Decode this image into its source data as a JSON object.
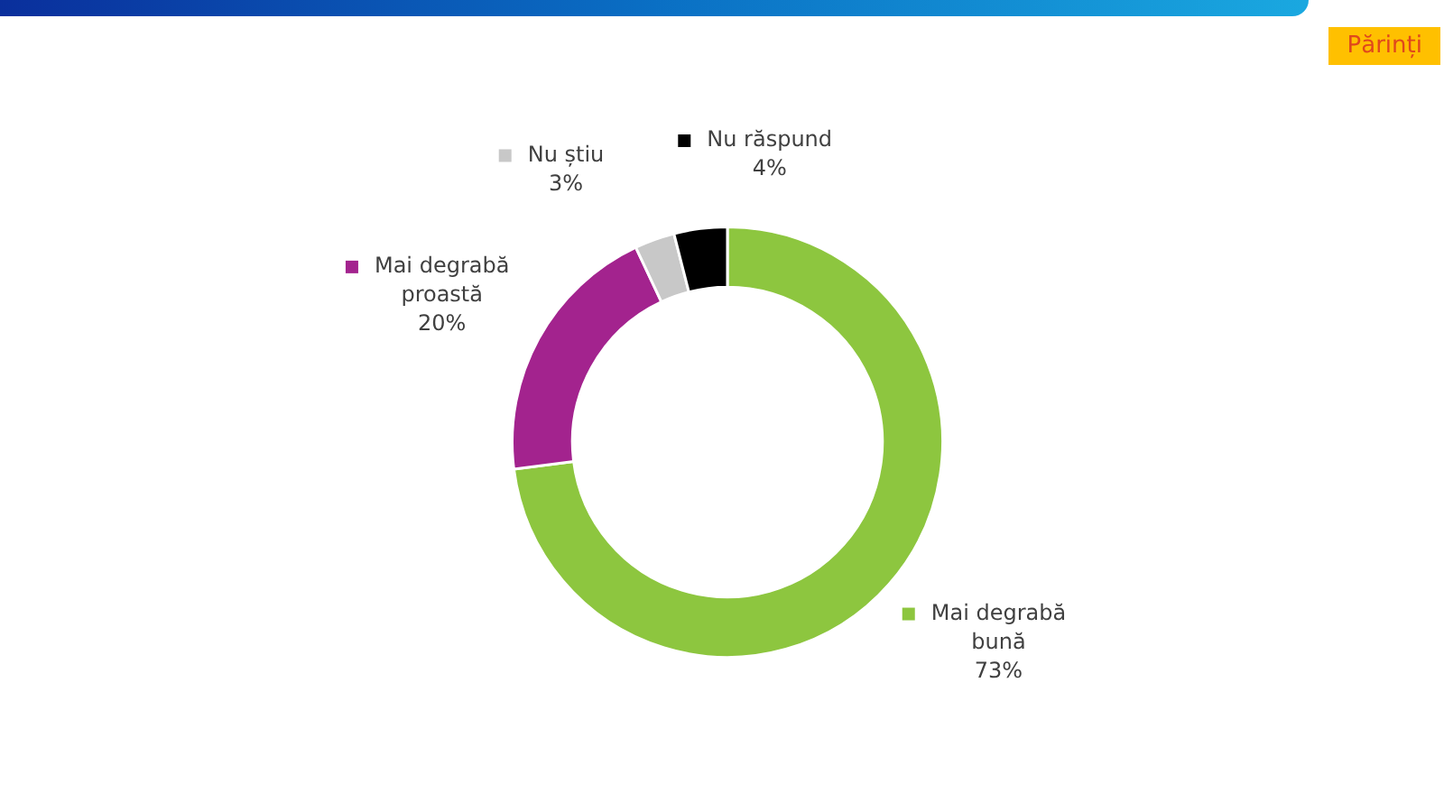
{
  "chart_data": {
    "type": "donut",
    "categories": [
      "Mai degrabă bună",
      "Mai degrabă proastă",
      "Nu știu",
      "Nu răspund"
    ],
    "values": [
      73,
      20,
      3,
      4
    ],
    "colors": [
      "#8dc63f",
      "#a3238e",
      "#c8c8c8",
      "#000000"
    ],
    "value_labels": [
      "73%",
      "20%",
      "3%",
      "4%"
    ],
    "legend": true,
    "annotations": [
      "Părinți"
    ]
  }
}
